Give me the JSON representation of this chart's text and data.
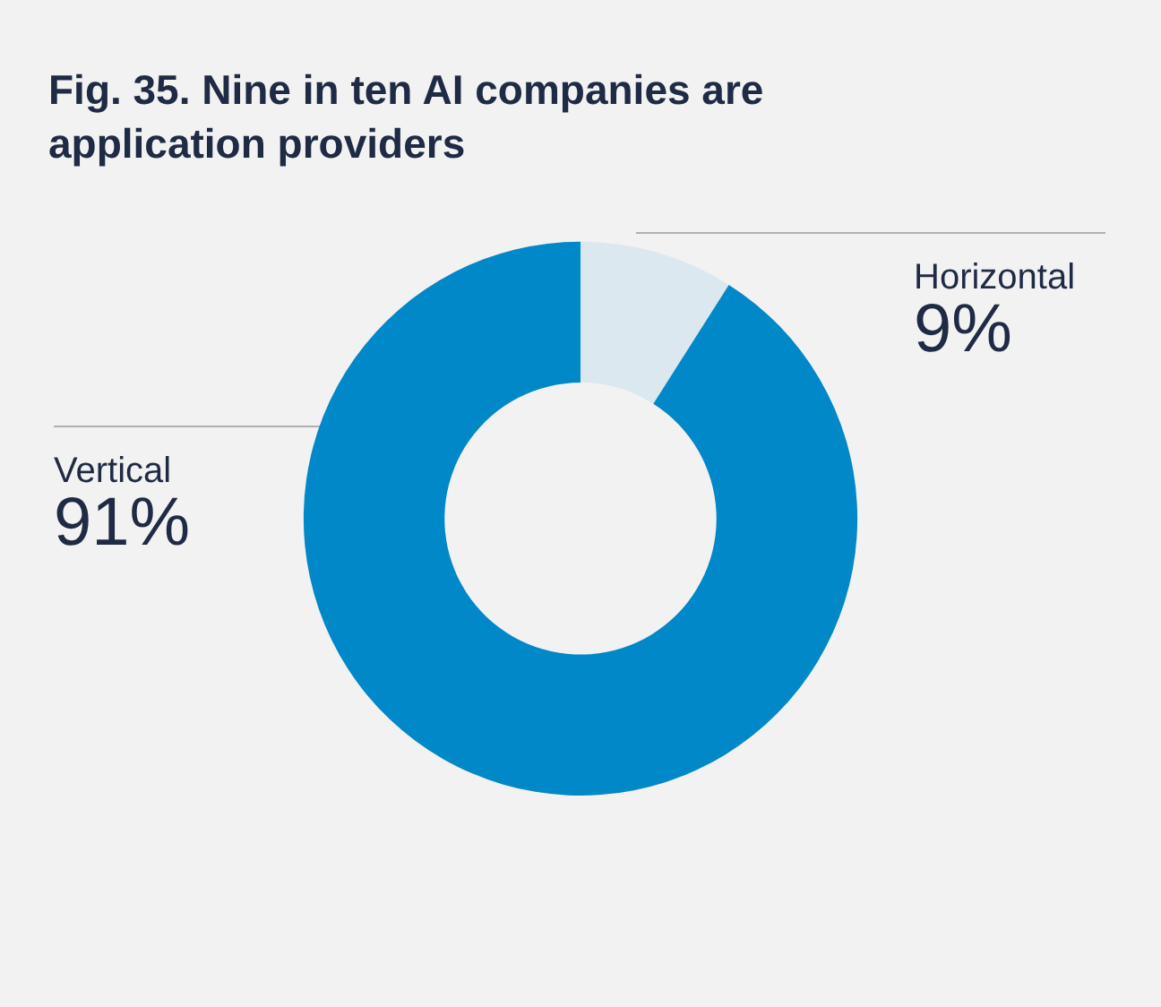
{
  "chart_data": {
    "type": "donut",
    "title": "Fig. 35. Nine in ten AI companies are application providers",
    "categories": [
      "Horizontal",
      "Vertical"
    ],
    "values": [
      9,
      91
    ],
    "colors": [
      "#dce8ef",
      "#0088c8"
    ],
    "value_labels": [
      "9%",
      "91%"
    ]
  }
}
